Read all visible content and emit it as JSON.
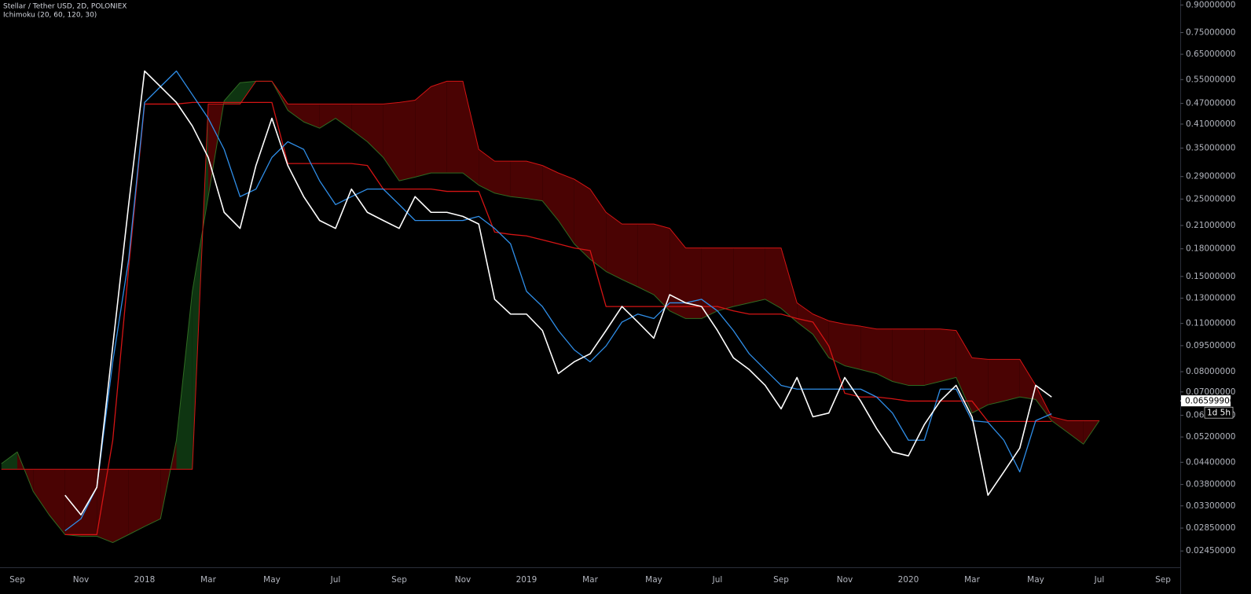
{
  "chart_data": {
    "type": "line",
    "title": "Stellar / Tether USD, 2D, POLONIEX",
    "subtitle": "Ichimoku (20, 60, 120, 30)",
    "log_scale": true,
    "grid": false,
    "ylim": [
      0.022,
      0.93
    ],
    "yticks": [
      {
        "value": 0.9,
        "label": "0.90000000"
      },
      {
        "value": 0.75,
        "label": "0.75000000"
      },
      {
        "value": 0.65,
        "label": "0.65000000"
      },
      {
        "value": 0.55,
        "label": "0.55000000"
      },
      {
        "value": 0.47,
        "label": "0.47000000"
      },
      {
        "value": 0.41,
        "label": "0.41000000"
      },
      {
        "value": 0.35,
        "label": "0.35000000"
      },
      {
        "value": 0.29,
        "label": "0.29000000"
      },
      {
        "value": 0.25,
        "label": "0.25000000"
      },
      {
        "value": 0.21,
        "label": "0.21000000"
      },
      {
        "value": 0.18,
        "label": "0.18000000"
      },
      {
        "value": 0.15,
        "label": "0.15000000"
      },
      {
        "value": 0.13,
        "label": "0.13000000"
      },
      {
        "value": 0.11,
        "label": "0.11000000"
      },
      {
        "value": 0.095,
        "label": "0.09500000"
      },
      {
        "value": 0.08,
        "label": "0.08000000"
      },
      {
        "value": 0.07,
        "label": "0.07000000"
      },
      {
        "value": 0.06,
        "label": "0.06000000"
      },
      {
        "value": 0.052,
        "label": "0.05200000"
      },
      {
        "value": 0.044,
        "label": "0.04400000"
      },
      {
        "value": 0.038,
        "label": "0.03800000"
      },
      {
        "value": 0.033,
        "label": "0.03300000"
      },
      {
        "value": 0.0285,
        "label": "0.02850000"
      },
      {
        "value": 0.0245,
        "label": "0.02450000"
      }
    ],
    "categories": [
      null,
      "Sep",
      null,
      null,
      null,
      "Nov",
      null,
      null,
      null,
      "2018",
      null,
      null,
      null,
      "Mar",
      null,
      null,
      null,
      "May",
      null,
      null,
      null,
      "Jul",
      null,
      null,
      null,
      "Sep",
      null,
      null,
      null,
      "Nov",
      null,
      null,
      null,
      "2019",
      null,
      null,
      null,
      "Mar",
      null,
      null,
      null,
      "May",
      null,
      null,
      null,
      "Jul",
      null,
      null,
      null,
      "Sep",
      null,
      null,
      null,
      "Nov",
      null,
      null,
      null,
      "2020",
      null,
      null,
      null,
      "Mar",
      null,
      null,
      null,
      "May",
      null,
      null,
      null,
      "Jul",
      null,
      null,
      null,
      "Sep"
    ],
    "cloud": {
      "up_color": "#0e3511",
      "down_color": "#4a0303",
      "series": [
        {
          "color": "#2f6b22",
          "values": [
            0.0436,
            0.0471,
            0.0363,
            0.0311,
            0.0273,
            0.027,
            0.027,
            0.0259,
            0.0273,
            0.0288,
            0.0303,
            0.0509,
            0.136,
            0.254,
            0.478,
            0.539,
            0.544,
            0.544,
            0.449,
            0.416,
            0.399,
            0.426,
            0.395,
            0.365,
            0.329,
            0.282,
            0.289,
            0.297,
            0.297,
            0.297,
            0.274,
            0.26,
            0.254,
            0.251,
            0.247,
            0.217,
            0.186,
            0.168,
            0.155,
            0.147,
            0.14,
            0.133,
            0.1195,
            0.1136,
            0.1136,
            0.1195,
            0.123,
            0.126,
            0.129,
            0.1215,
            0.111,
            0.1024,
            0.0877,
            0.0832,
            0.0811,
            0.079,
            0.075,
            0.0731,
            0.0731,
            0.075,
            0.077,
            0.0609,
            0.0643,
            0.0659,
            0.0677,
            0.0666,
            0.0579,
            0.0536,
            0.0496,
            0.0579,
            null,
            null,
            null,
            null
          ]
        },
        {
          "color": "#d41414",
          "values": [
            0.042,
            0.042,
            0.042,
            0.042,
            0.042,
            0.042,
            0.042,
            0.042,
            0.042,
            0.042,
            0.042,
            0.042,
            0.042,
            0.468,
            0.468,
            0.468,
            0.544,
            0.544,
            0.468,
            0.468,
            0.468,
            0.468,
            0.468,
            0.468,
            0.468,
            0.473,
            0.48,
            0.525,
            0.544,
            0.544,
            0.347,
            0.321,
            0.321,
            0.321,
            0.312,
            0.297,
            0.285,
            0.267,
            0.229,
            0.212,
            0.212,
            0.212,
            0.206,
            0.181,
            0.181,
            0.181,
            0.181,
            0.181,
            0.181,
            0.181,
            0.126,
            0.117,
            0.1119,
            0.1095,
            0.108,
            0.106,
            0.106,
            0.106,
            0.106,
            0.106,
            0.105,
            0.0877,
            0.0868,
            0.0868,
            0.0868,
            0.0731,
            0.0594,
            0.0579,
            0.0579,
            0.0579,
            null,
            null,
            null,
            null
          ]
        }
      ]
    },
    "series": [
      {
        "color": "#d41414",
        "values": [
          null,
          null,
          null,
          null,
          0.0273,
          0.0273,
          0.0273,
          0.0509,
          0.159,
          0.468,
          0.468,
          0.468,
          0.473,
          0.473,
          0.473,
          0.473,
          0.473,
          0.473,
          0.316,
          0.316,
          0.316,
          0.316,
          0.316,
          0.312,
          0.267,
          0.267,
          0.267,
          0.267,
          0.263,
          0.263,
          0.263,
          0.201,
          0.198,
          0.196,
          0.191,
          0.186,
          0.181,
          0.178,
          0.123,
          0.123,
          0.123,
          0.123,
          0.123,
          0.123,
          0.123,
          0.123,
          0.1195,
          0.117,
          0.117,
          0.117,
          0.1136,
          0.111,
          0.0948,
          0.0694,
          0.0677,
          0.0677,
          0.0669,
          0.0659,
          0.0659,
          0.0659,
          0.0659,
          0.0659,
          0.0576,
          0.0576,
          0.0576,
          0.0576,
          0.0576,
          null,
          null,
          null,
          null,
          null,
          null,
          null
        ]
      },
      {
        "color": "#2f8ee8",
        "values": [
          null,
          null,
          null,
          null,
          0.028,
          0.0303,
          0.0373,
          0.0854,
          0.168,
          0.473,
          0.525,
          0.582,
          0.498,
          0.426,
          0.347,
          0.254,
          0.267,
          0.329,
          0.365,
          0.347,
          0.282,
          0.241,
          0.254,
          0.267,
          0.267,
          0.241,
          0.217,
          0.217,
          0.217,
          0.217,
          0.223,
          0.206,
          0.186,
          0.136,
          0.123,
          0.105,
          0.0924,
          0.0854,
          0.0948,
          0.111,
          0.117,
          0.1136,
          0.126,
          0.126,
          0.129,
          0.1195,
          0.105,
          0.09,
          0.0811,
          0.0731,
          0.0713,
          0.0713,
          0.0713,
          0.0713,
          0.0713,
          0.0677,
          0.0609,
          0.0509,
          0.0509,
          0.0713,
          0.0713,
          0.0579,
          0.0573,
          0.0509,
          0.0413,
          0.0579,
          0.0606,
          null,
          null,
          null,
          null,
          null,
          null,
          null
        ]
      },
      {
        "color": "#ffffff",
        "values": [
          null,
          null,
          null,
          null,
          0.0354,
          0.0311,
          0.0373,
          0.0948,
          0.241,
          0.582,
          0.525,
          0.473,
          0.405,
          0.329,
          0.229,
          0.206,
          0.312,
          0.426,
          0.312,
          0.254,
          0.217,
          0.206,
          0.267,
          0.229,
          0.217,
          0.206,
          0.254,
          0.229,
          0.229,
          0.223,
          0.212,
          0.129,
          0.117,
          0.117,
          0.105,
          0.079,
          0.0854,
          0.09,
          0.105,
          0.123,
          0.111,
          0.0998,
          0.133,
          0.126,
          0.123,
          0.105,
          0.0877,
          0.0811,
          0.0731,
          0.0626,
          0.077,
          0.0594,
          0.0609,
          0.077,
          0.0659,
          0.055,
          0.0471,
          0.0459,
          0.0564,
          0.0659,
          0.0731,
          0.0594,
          0.0354,
          0.0413,
          0.0483,
          0.0731,
          0.0677,
          null,
          null,
          null,
          null,
          null,
          null,
          null
        ]
      }
    ],
    "last_price": {
      "value": 0.06599906,
      "label": "0.06599906"
    },
    "countdown": "1d 5h"
  }
}
